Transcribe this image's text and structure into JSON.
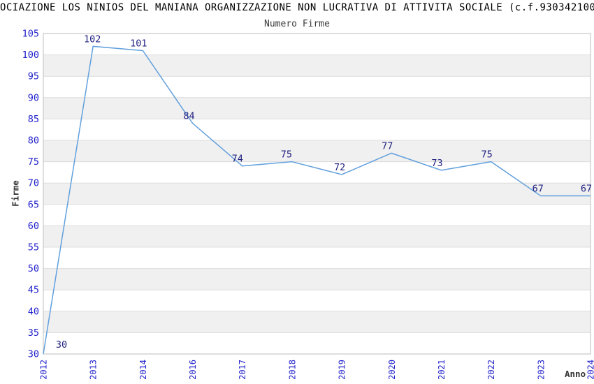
{
  "header": {
    "title": "OCIAZIONE LOS NINIOS DEL MANIANA ORGANIZZAZIONE NON LUCRATIVA DI ATTIVITA SOCIALE (c.f.930342100",
    "subtitle": "Numero Firme"
  },
  "axes": {
    "x_title": "Anno",
    "y_title": "Firme"
  },
  "chart_data": {
    "type": "line",
    "title": "Numero Firme",
    "xlabel": "Anno",
    "ylabel": "Firme",
    "categories": [
      "2012",
      "2013",
      "2014",
      "2016",
      "2017",
      "2018",
      "2019",
      "2020",
      "2021",
      "2022",
      "2023",
      "2024"
    ],
    "values": [
      30,
      102,
      101,
      84,
      74,
      75,
      72,
      77,
      73,
      75,
      67,
      67
    ],
    "point_labels": [
      "30",
      "102",
      "101",
      "84",
      "74",
      "75",
      "72",
      "77",
      "73",
      "75",
      "67",
      "67"
    ],
    "ylim": [
      30,
      105
    ],
    "ytick_step": 5,
    "yticks": [
      30,
      35,
      40,
      45,
      50,
      55,
      60,
      65,
      70,
      75,
      80,
      85,
      90,
      95,
      100,
      105
    ],
    "grid": "horizontal-bands-alternating",
    "legend": "none",
    "x_tick_rotation": -90,
    "colors": {
      "line": "#62a0dd",
      "tick_label": "#2222cc",
      "point_label": "#1f1f80",
      "band_fill": "#f0f0f0",
      "grid_line": "#dcdcdc",
      "frame": "#c8c8c8",
      "text": "#3a3a3a",
      "title": "#000000",
      "background": "#ffffff"
    }
  }
}
